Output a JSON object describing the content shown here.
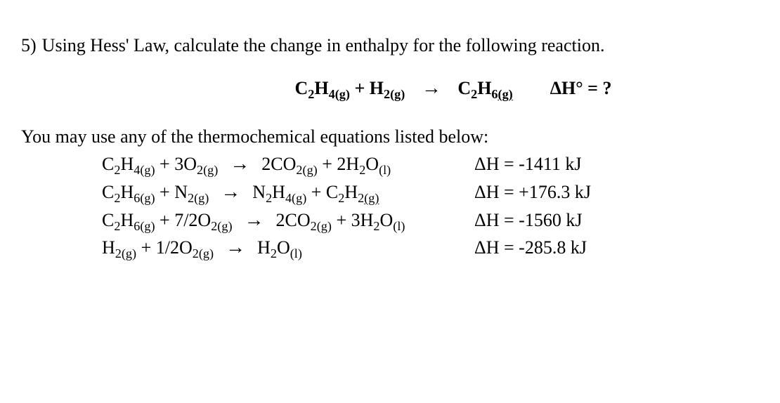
{
  "question": {
    "number": "5)",
    "text": "Using Hess' Law, calculate the change in enthalpy for the following reaction."
  },
  "mainReaction": {
    "reactant1": {
      "formula": "C",
      "sub1": "2",
      "formula2": "H",
      "sub2": "4",
      "phase": "(g)"
    },
    "plus": " + ",
    "reactant2": {
      "formula": "H",
      "sub1": "2",
      "phase": "(g)"
    },
    "arrow": "→",
    "product1": {
      "formula": "C",
      "sub1": "2",
      "formula2": "H",
      "sub2": "6",
      "phase": "(g)"
    },
    "delta": "ΔH° = ?"
  },
  "introText": "You may use any of the thermochemical equations listed below:",
  "reactions": [
    {
      "lhs": [
        {
          "coef": "",
          "el1": "C",
          "s1": "2",
          "el2": "H",
          "s2": "4",
          "phase": "(g)",
          "underline": false
        },
        {
          "plus": " + "
        },
        {
          "coef": "3",
          "el1": "O",
          "s1": "2",
          "phase": "(g)",
          "underline": false
        }
      ],
      "rhs": [
        {
          "coef": "2",
          "el1": "CO",
          "s1": "2",
          "phase": "(g)",
          "underline": false
        },
        {
          "plus": " + "
        },
        {
          "coef": "2",
          "el1": "H",
          "s1": "2",
          "el2": "O",
          "phase": "(l)",
          "underline": false
        }
      ],
      "dh": "ΔH = -1411 kJ"
    },
    {
      "lhs": [
        {
          "coef": "",
          "el1": "C",
          "s1": "2",
          "el2": "H",
          "s2": "6",
          "phase": "(g)",
          "underline": false
        },
        {
          "plus": " + "
        },
        {
          "coef": "",
          "el1": "N",
          "s1": "2",
          "phase": "(g)",
          "underline": false
        }
      ],
      "rhs": [
        {
          "coef": "",
          "el1": "N",
          "s1": "2",
          "el2": "H",
          "s2": "4",
          "phase": "(g)",
          "underline": false
        },
        {
          "plus": " + "
        },
        {
          "coef": "",
          "el1": "C",
          "s1": "2",
          "el2": "H",
          "s2": "2",
          "phase": "(g)",
          "underline": true
        }
      ],
      "dh": "ΔH = +176.3 kJ"
    },
    {
      "lhs": [
        {
          "coef": "",
          "el1": "C",
          "s1": "2",
          "el2": "H",
          "s2": "6",
          "phase": "(g)",
          "underline": false
        },
        {
          "plus": " + "
        },
        {
          "coef": "7/2",
          "el1": "O",
          "s1": "2",
          "phase": "(g)",
          "underline": false
        }
      ],
      "rhs": [
        {
          "coef": "2",
          "el1": "CO",
          "s1": "2",
          "phase": "(g)",
          "underline": false
        },
        {
          "plus": " + "
        },
        {
          "coef": "3",
          "el1": "H",
          "s1": "2",
          "el2": "O",
          "phase": "(l)",
          "underline": false
        }
      ],
      "dh": "ΔH = -1560 kJ"
    },
    {
      "lhs": [
        {
          "coef": "",
          "el1": "H",
          "s1": "2",
          "phase": "(g)",
          "underline": false
        },
        {
          "plus": " + "
        },
        {
          "coef": "1/2",
          "el1": "O",
          "s1": "2",
          "phase": "(g)",
          "underline": false
        }
      ],
      "rhs": [
        {
          "coef": "",
          "el1": "H",
          "s1": "2",
          "el2": "O",
          "phase": "(l)",
          "underline": false
        }
      ],
      "dh": "ΔH = -285.8 kJ"
    }
  ],
  "arrow": "→",
  "colors": {
    "text": "#000000",
    "background": "#ffffff"
  },
  "typography": {
    "fontFamily": "Times New Roman",
    "baseFontSize": 26
  }
}
